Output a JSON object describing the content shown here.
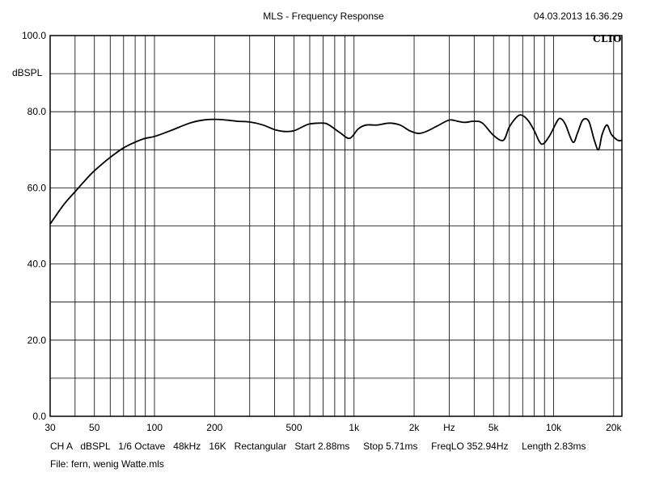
{
  "chart_data": {
    "type": "line",
    "title": "MLS - Frequency Response",
    "timestamp": "04.03.2013 16.36.29",
    "ylabel": "dBSPL",
    "brand": "CLIO",
    "x_scale": "log",
    "xlim": [
      30,
      22000
    ],
    "ylim": [
      0,
      100
    ],
    "x_ticks": [
      {
        "value": 30,
        "label": "30"
      },
      {
        "value": 50,
        "label": "50"
      },
      {
        "value": 100,
        "label": "100"
      },
      {
        "value": 200,
        "label": "200"
      },
      {
        "value": 500,
        "label": "500"
      },
      {
        "value": 1000,
        "label": "1k"
      },
      {
        "value": 2000,
        "label": "2k"
      },
      {
        "value": 3000,
        "label": "Hz"
      },
      {
        "value": 5000,
        "label": "5k"
      },
      {
        "value": 10000,
        "label": "10k"
      },
      {
        "value": 20000,
        "label": "20k"
      }
    ],
    "y_ticks": [
      {
        "value": 0,
        "label": "0.0"
      },
      {
        "value": 20,
        "label": "20.0"
      },
      {
        "value": 40,
        "label": "40.0"
      },
      {
        "value": 60,
        "label": "60.0"
      },
      {
        "value": 80,
        "label": "80.0"
      },
      {
        "value": 100,
        "label": "100.0"
      }
    ],
    "grid": true,
    "series": [
      {
        "color": "#000000",
        "x": [
          30,
          35,
          40,
          45,
          50,
          60,
          70,
          80,
          90,
          100,
          120,
          150,
          175,
          200,
          230,
          260,
          300,
          350,
          400,
          450,
          500,
          550,
          600,
          700,
          750,
          850,
          950,
          1050,
          1150,
          1300,
          1500,
          1700,
          1900,
          2100,
          2300,
          2600,
          3000,
          3300,
          3600,
          4000,
          4400,
          5000,
          5600,
          6000,
          6600,
          7000,
          7500,
          8000,
          8700,
          9500,
          10500,
          11000,
          11500,
          12500,
          13200,
          14000,
          15000,
          16000,
          16800,
          17500,
          18500,
          19500,
          21000,
          22000
        ],
        "y": [
          50.5,
          55.5,
          59,
          62,
          64.5,
          68,
          70.5,
          72,
          73,
          73.5,
          75,
          77,
          77.8,
          78,
          77.8,
          77.5,
          77.3,
          76.5,
          75.3,
          74.8,
          75,
          76,
          76.8,
          77,
          76.5,
          74.5,
          73,
          75.5,
          76.5,
          76.5,
          77,
          76.5,
          75,
          74.3,
          74.8,
          76.2,
          77.8,
          77.5,
          77.2,
          77.5,
          77,
          73.8,
          72.5,
          76,
          78.8,
          79,
          77.5,
          75,
          71.5,
          73.5,
          77.8,
          78,
          76.5,
          72,
          74.5,
          77.8,
          77.5,
          72.5,
          70,
          74,
          76.5,
          74,
          72.5,
          72.5
        ]
      }
    ]
  },
  "footer": {
    "settings": "CH A   dBSPL   1/6 Octave   48kHz   16K   Rectangular   Start 2.88ms     Stop 5.71ms     FreqLO 352.94Hz     Length 2.83ms",
    "file": "File: fern, wenig Watte.mls"
  }
}
